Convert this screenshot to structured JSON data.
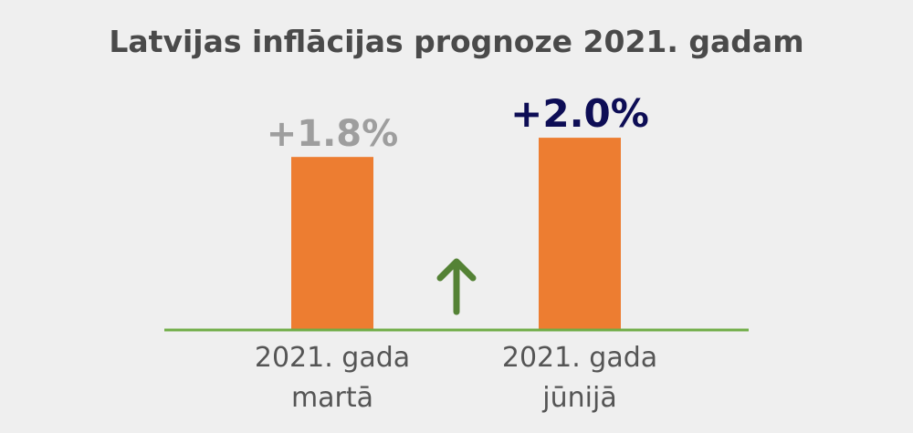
{
  "chart_data": {
    "type": "bar",
    "title": "Latvijas inflācijas prognoze 2021. gadam",
    "categories": [
      [
        "2021. gada",
        "martā"
      ],
      [
        "2021. gada",
        "jūnijā"
      ]
    ],
    "values": [
      1.8,
      2.0
    ],
    "data_labels": [
      "+1.8%",
      "+2.0%"
    ],
    "ylim": [
      0,
      2.2
    ],
    "grid": false,
    "legend": "none",
    "xlabel": "",
    "ylabel": ""
  },
  "colors": {
    "bar": "#ed7d31",
    "baseline": "#70ad47",
    "arrow": "#548235",
    "label_previous": "#9e9e9e",
    "label_current": "#0d0d55",
    "title": "#4a4a4a",
    "axis_text": "#555555"
  },
  "icons": {
    "change_indicator": "up-arrow-icon"
  }
}
